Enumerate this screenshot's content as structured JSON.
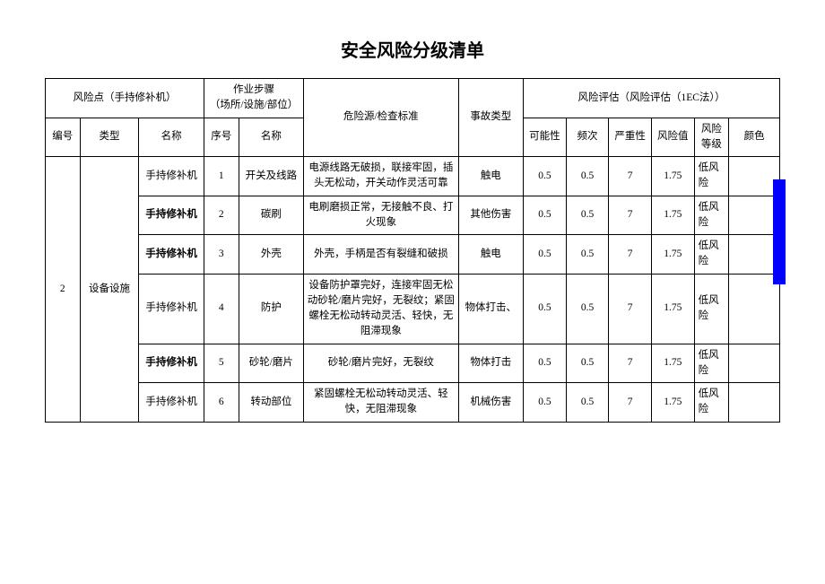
{
  "title": "安全风险分级清单",
  "header": {
    "risk_point_group": "风险点（手持修补机）",
    "work_step_group": "作业步骤\n（场所/设施/部位）",
    "hazard": "危险源/检查标准",
    "accident_type": "事故类型",
    "risk_eval_group": "风险评估（风险评估（1EC法））",
    "col_id": "编号",
    "col_type": "类型",
    "col_name": "名称",
    "col_seq": "序号",
    "col_step_name": "名称",
    "col_possibility": "可能性",
    "col_frequency": "频次",
    "col_severity": "严重性",
    "col_risk_value": "风险值",
    "col_risk_level": "风险\n等级",
    "col_color": "颜色"
  },
  "group": {
    "id": "2",
    "type": "设备设施"
  },
  "rows": [
    {
      "name": "手持修补机",
      "bold": false,
      "seq": "1",
      "step": "开关及线路",
      "hazard": "电源线路无破损，联接牢固，插头无松动，开关动作灵活可靠",
      "accident": "触电",
      "possibility": "0.5",
      "frequency": "0.5",
      "severity": "7",
      "value": "1.75",
      "level": "低风险"
    },
    {
      "name": "手持修补机",
      "bold": true,
      "seq": "2",
      "step": "碳刷",
      "hazard": "电刷磨损正常，无接触不良、打火现象",
      "accident": "其他伤害",
      "possibility": "0.5",
      "frequency": "0.5",
      "severity": "7",
      "value": "1.75",
      "level": "低风险"
    },
    {
      "name": "手持修补机",
      "bold": true,
      "seq": "3",
      "step": "外壳",
      "hazard": "外壳，手柄是否有裂缝和破损",
      "accident": "触电",
      "possibility": "0.5",
      "frequency": "0.5",
      "severity": "7",
      "value": "1.75",
      "level": "低风险"
    },
    {
      "name": "手持修补机",
      "bold": false,
      "seq": "4",
      "step": "防护",
      "hazard": "设备防护罩完好，连接牢固无松动砂轮/磨片完好，无裂纹；紧固螺栓无松动转动灵活、轻快，无阻滞现象",
      "accident": "物体打击、",
      "possibility": "0.5",
      "frequency": "0.5",
      "severity": "7",
      "value": "1.75",
      "level": "低风险"
    },
    {
      "name": "手持修补机",
      "bold": true,
      "seq": "5",
      "step": "砂轮/磨片",
      "hazard": "砂轮/磨片完好，无裂纹",
      "accident": "物体打击",
      "possibility": "0.5",
      "frequency": "0.5",
      "severity": "7",
      "value": "1.75",
      "level": "低风险"
    },
    {
      "name": "手持修补机",
      "bold": false,
      "seq": "6",
      "step": "转动部位",
      "hazard": "紧固螺栓无松动转动灵活、轻快，无阻滞现象",
      "accident": "机械伤害",
      "possibility": "0.5",
      "frequency": "0.5",
      "severity": "7",
      "value": "1.75",
      "level": "低风险"
    }
  ],
  "color_bar": {
    "color": "#0000ff",
    "top_row": 1,
    "span_rows": 2
  }
}
